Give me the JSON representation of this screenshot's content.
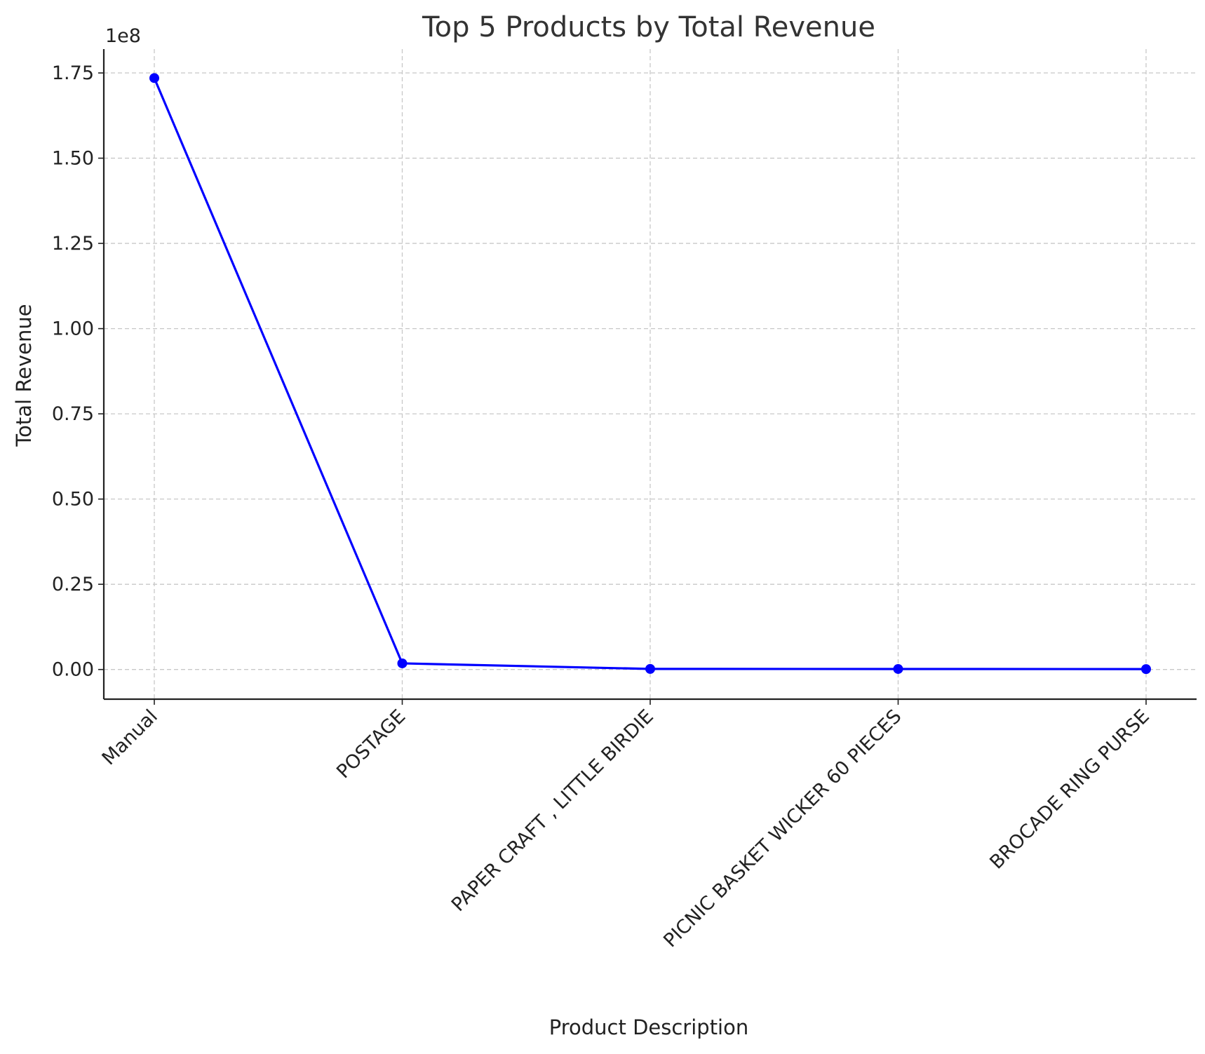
{
  "chart_data": {
    "type": "line",
    "title": "Top 5 Products by Total Revenue",
    "xlabel": "Product Description",
    "ylabel": "Total Revenue",
    "y_offset_label": "1e8",
    "categories": [
      "Manual",
      "POSTAGE",
      "PAPER CRAFT , LITTLE BIRDIE",
      "PICNIC BASKET WICKER 60 PIECES",
      "BROCADE RING PURSE"
    ],
    "series": [
      {
        "values": [
          173500000,
          1800000,
          170000,
          150000,
          120000
        ],
        "color": "#0000ff",
        "marker": "circle"
      }
    ],
    "y_ticks": [
      0,
      0.25,
      0.5,
      0.75,
      1.0,
      1.25,
      1.5,
      1.75
    ],
    "y_tick_labels": [
      "0.00",
      "0.25",
      "0.50",
      "0.75",
      "1.00",
      "1.25",
      "1.50",
      "1.75"
    ],
    "y_scale_factor": 100000000,
    "ylim": [
      -0.087,
      1.82
    ],
    "grid": true,
    "x_tick_rotation_deg": -45
  }
}
